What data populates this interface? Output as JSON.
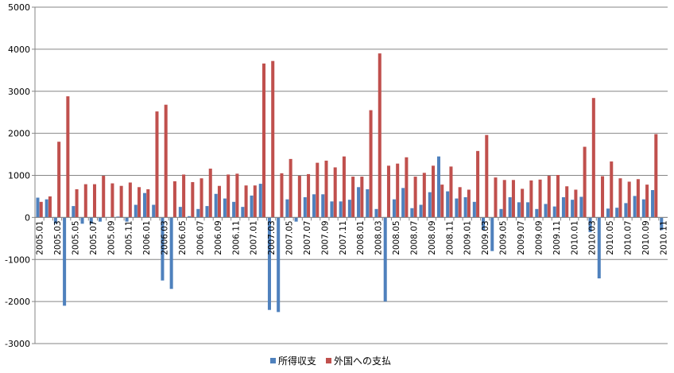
{
  "chart_data": {
    "type": "bar",
    "ylim": [
      -3000,
      5000
    ],
    "yticks": [
      -3000,
      -2000,
      -1000,
      0,
      1000,
      2000,
      3000,
      4000,
      5000
    ],
    "grid": true,
    "legend_position": "bottom",
    "categories": [
      "2005.01",
      "2005.02",
      "2005.03",
      "2005.04",
      "2005.05",
      "2005.06",
      "2005.07",
      "2005.08",
      "2005.09",
      "2005.10",
      "2005.11",
      "2005.12",
      "2006.01",
      "2006.02",
      "2006.03",
      "2006.04",
      "2006.05",
      "2006.06",
      "2006.07",
      "2006.08",
      "2006.09",
      "2006.10",
      "2006.11",
      "2006.12",
      "2007.01",
      "2007.02",
      "2007.03",
      "2007.04",
      "2007.05",
      "2007.06",
      "2007.07",
      "2007.08",
      "2007.09",
      "2007.10",
      "2007.11",
      "2007.12",
      "2008.01",
      "2008.02",
      "2008.03",
      "2008.04",
      "2008.05",
      "2008.06",
      "2008.07",
      "2008.08",
      "2008.09",
      "2008.10",
      "2008.11",
      "2008.12",
      "2009.01",
      "2009.02",
      "2009.03",
      "2009.04",
      "2009.05",
      "2009.06",
      "2009.07",
      "2009.08",
      "2009.09",
      "2009.10",
      "2009.11",
      "2009.12",
      "2010.01",
      "2010.02",
      "2010.03",
      "2010.04",
      "2010.05",
      "2010.06",
      "2010.07",
      "2010.08",
      "2010.09",
      "2010.10",
      "2010.11"
    ],
    "x_tick_labels": [
      "2005.01",
      "",
      "2005.03",
      "",
      "2005.05",
      "",
      "2005.07",
      "",
      "2005.09",
      "",
      "2005.11",
      "",
      "2006.01",
      "",
      "2006.03",
      "",
      "2006.05",
      "",
      "2006.07",
      "",
      "2006.09",
      "",
      "2006.11",
      "",
      "2007.01",
      "",
      "2007.03",
      "",
      "2007.05",
      "",
      "2007.07",
      "",
      "2007.09",
      "",
      "2007.11",
      "",
      "2008.01",
      "",
      "2008.03",
      "",
      "2008.05",
      "",
      "2008.07",
      "",
      "2008.09",
      "",
      "2008.11",
      "",
      "2009.01",
      "",
      "2009.03",
      "",
      "2009.05",
      "",
      "2009.07",
      "",
      "2009.09",
      "",
      "2009.11",
      "",
      "2010.01",
      "",
      "2010.03",
      "",
      "2010.05",
      "",
      "2010.07",
      "",
      "2010.09",
      "",
      "2010.11"
    ],
    "series": [
      {
        "name": "所得収支",
        "color": "#4f81bd",
        "values": [
          470,
          430,
          -150,
          -2100,
          270,
          -150,
          -150,
          -100,
          0,
          20,
          -100,
          300,
          580,
          300,
          -1500,
          -1700,
          250,
          30,
          200,
          270,
          560,
          450,
          370,
          250,
          520,
          800,
          -2200,
          -2250,
          430,
          -100,
          480,
          550,
          550,
          380,
          380,
          420,
          720,
          670,
          200,
          -2000,
          430,
          700,
          220,
          300,
          600,
          1450,
          620,
          450,
          480,
          370,
          -300,
          -800,
          200,
          480,
          360,
          360,
          200,
          320,
          260,
          480,
          420,
          490,
          -350,
          -1450,
          210,
          230,
          340,
          510,
          430,
          650,
          -300
        ]
      },
      {
        "name": "外国への支払",
        "color": "#c0504d",
        "values": [
          370,
          500,
          1800,
          2880,
          670,
          790,
          790,
          990,
          810,
          750,
          830,
          720,
          670,
          2520,
          2680,
          860,
          1020,
          840,
          930,
          1160,
          750,
          1020,
          1040,
          760,
          760,
          3660,
          3720,
          1050,
          1390,
          990,
          1030,
          1300,
          1350,
          1190,
          1450,
          970,
          970,
          2550,
          3900,
          1230,
          1280,
          1430,
          970,
          1060,
          1230,
          780,
          1210,
          720,
          660,
          1580,
          1960,
          950,
          890,
          890,
          680,
          880,
          900,
          990,
          1010,
          740,
          660,
          1680,
          2840,
          980,
          1330,
          930,
          850,
          910,
          780,
          1980,
          0
        ]
      }
    ]
  }
}
